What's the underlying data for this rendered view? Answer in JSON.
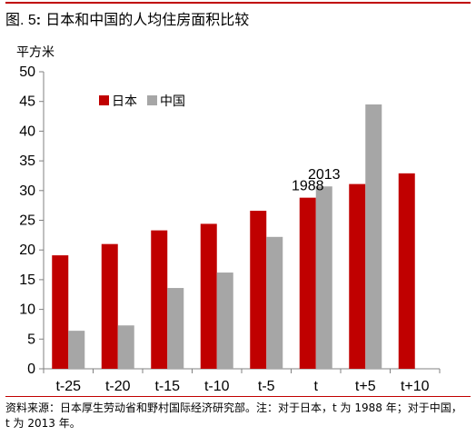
{
  "figure": {
    "label": "图. 5",
    "separator": ":",
    "title": "日本和中国的人均住房面积比较"
  },
  "colors": {
    "japan": "#c00000",
    "china": "#a6a6a6",
    "accent_rule": "#c00000",
    "axis": "#808080"
  },
  "chart_data": {
    "type": "bar",
    "ylabel": "平方米",
    "xlabel": "",
    "ylim": [
      0,
      50
    ],
    "yticks": [
      0,
      5,
      10,
      15,
      20,
      25,
      30,
      35,
      40,
      45,
      50
    ],
    "grid": false,
    "legend_position": "top-left",
    "categories": [
      "t-25",
      "t-20",
      "t-15",
      "t-10",
      "t-5",
      "t",
      "t+5",
      "t+10"
    ],
    "series": [
      {
        "name": "日本",
        "color": "#c00000",
        "values": [
          19.1,
          21.0,
          23.3,
          24.4,
          26.6,
          28.8,
          31.1,
          32.9
        ]
      },
      {
        "name": "中国",
        "color": "#a6a6a6",
        "values": [
          6.4,
          7.3,
          13.6,
          16.2,
          22.2,
          30.7,
          44.5,
          null
        ]
      }
    ],
    "annotations": [
      {
        "text": "1988",
        "series": 0,
        "category": "t"
      },
      {
        "text": "2013",
        "series": 1,
        "category": "t"
      }
    ]
  },
  "source_note": "资料来源：日本厚生劳动省和野村国际经济研究部。注：对于日本，t 为 1988 年；对于中国，t 为 2013 年。"
}
